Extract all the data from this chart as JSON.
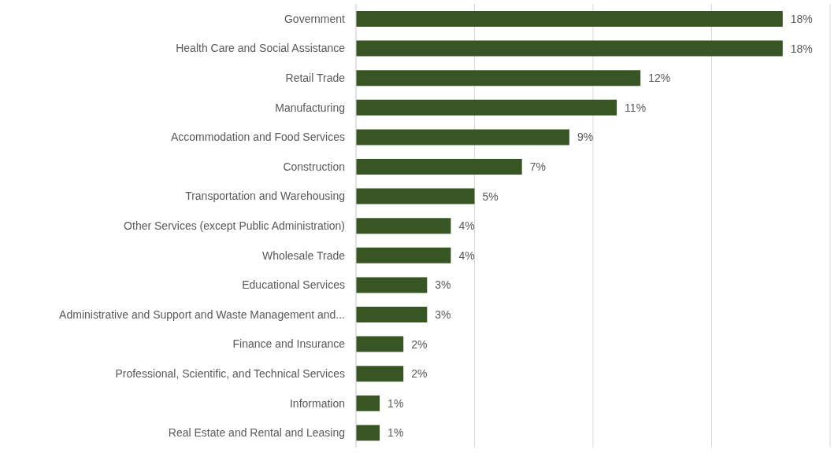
{
  "chart_data": {
    "type": "bar",
    "orientation": "horizontal",
    "categories": [
      "Government",
      "Health Care and Social Assistance",
      "Retail Trade",
      "Manufacturing",
      "Accommodation and Food Services",
      "Construction",
      "Transportation and Warehousing",
      "Other Services (except Public Administration)",
      "Wholesale Trade",
      "Educational Services",
      "Administrative and Support and Waste Management and...",
      "Finance and Insurance",
      "Professional, Scientific, and Technical Services",
      "Information",
      "Real Estate and Rental and Leasing"
    ],
    "values": [
      18,
      18,
      12,
      11,
      9,
      7,
      5,
      4,
      4,
      3,
      3,
      2,
      2,
      1,
      1
    ],
    "value_labels": [
      "18%",
      "18%",
      "12%",
      "11%",
      "9%",
      "7%",
      "5%",
      "4%",
      "4%",
      "3%",
      "3%",
      "2%",
      "2%",
      "1%",
      "1%"
    ],
    "color": "#375623",
    "xlim": [
      0,
      20
    ],
    "xticks": [
      {
        "value": 0,
        "label": null
      },
      {
        "value": 5,
        "label": null
      },
      {
        "value": 10,
        "label": null
      },
      {
        "value": 15,
        "label": null
      }
    ],
    "grid": "x",
    "tick_labels": "y"
  }
}
